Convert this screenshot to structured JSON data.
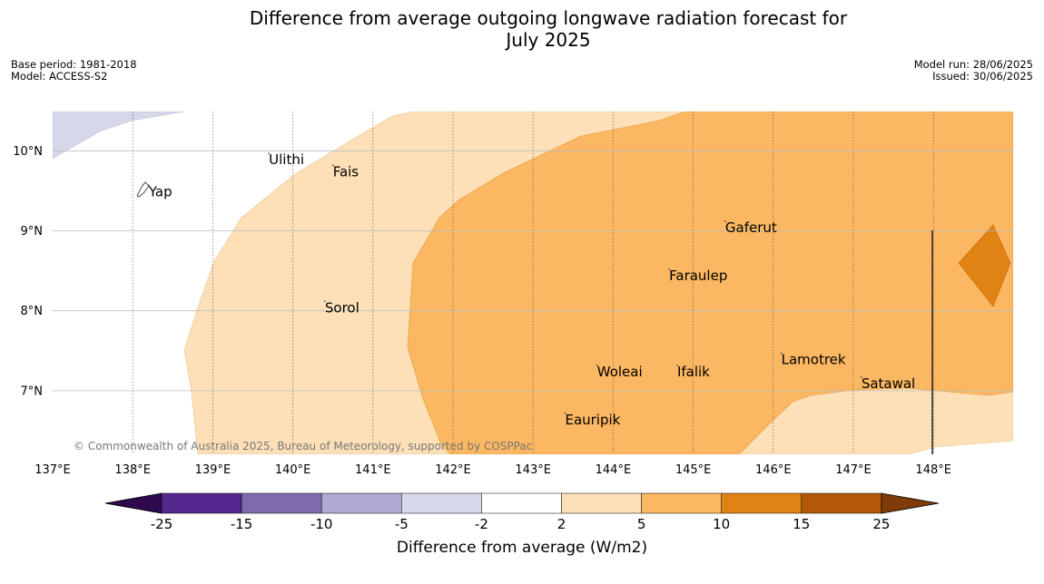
{
  "title": {
    "line1": "Difference from average outgoing longwave radiation forecast for",
    "line2": "July 2025"
  },
  "meta_left": {
    "base_period": "Base period: 1981-2018",
    "model": "Model: ACCESS-S2"
  },
  "meta_right": {
    "model_run": "Model run: 28/06/2025",
    "issued": "Issued: 30/06/2025"
  },
  "map": {
    "lon_range": [
      137,
      149
    ],
    "lat_range": [
      6.2,
      10.5
    ],
    "x_ticks": [
      "137°E",
      "138°E",
      "139°E",
      "140°E",
      "141°E",
      "142°E",
      "143°E",
      "144°E",
      "145°E",
      "146°E",
      "147°E",
      "148°E"
    ],
    "y_ticks": [
      "10°N",
      "9°N",
      "8°N",
      "7°N"
    ],
    "places": [
      {
        "name": "Yap",
        "lon": 138.2,
        "lat": 9.5
      },
      {
        "name": "Ulithi",
        "lon": 139.7,
        "lat": 9.9
      },
      {
        "name": "Fais",
        "lon": 140.5,
        "lat": 9.75
      },
      {
        "name": "Gaferut",
        "lon": 145.4,
        "lat": 9.05
      },
      {
        "name": "Faraulep",
        "lon": 144.7,
        "lat": 8.45
      },
      {
        "name": "Sorol",
        "lon": 140.4,
        "lat": 8.05
      },
      {
        "name": "Lamotrek",
        "lon": 146.1,
        "lat": 7.4
      },
      {
        "name": "Woleai",
        "lon": 143.8,
        "lat": 7.25
      },
      {
        "name": "Ifalik",
        "lon": 144.8,
        "lat": 7.25
      },
      {
        "name": "Satawal",
        "lon": 147.1,
        "lat": 7.1
      },
      {
        "name": "Eauripik",
        "lon": 143.4,
        "lat": 6.65
      }
    ],
    "copyright": "© Commonwealth of Australia 2025, Bureau of Meteorology, supported by COSPPac"
  },
  "colorbar": {
    "label": "Difference from average (W/m2)",
    "ticks": [
      "-25",
      "-15",
      "-10",
      "-5",
      "-2",
      "2",
      "5",
      "10",
      "15",
      "25"
    ],
    "colors": {
      "under": "#2d0a4e",
      "bins": [
        "#54278f",
        "#7e6bad",
        "#b1a9d2",
        "#d9d9ed",
        "#ffffff",
        "#fde0b7",
        "#fbb761",
        "#e08214",
        "#b35806"
      ],
      "over": "#7f3b08"
    }
  }
}
